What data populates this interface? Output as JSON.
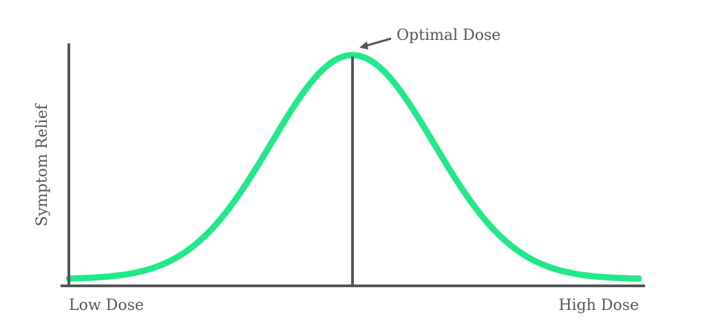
{
  "y_axis_label": "Symptom Relief",
  "x_axis_left_label": "Low Dose",
  "x_axis_right_label": "High Dose",
  "annotation": "Optimal Dose"
}
